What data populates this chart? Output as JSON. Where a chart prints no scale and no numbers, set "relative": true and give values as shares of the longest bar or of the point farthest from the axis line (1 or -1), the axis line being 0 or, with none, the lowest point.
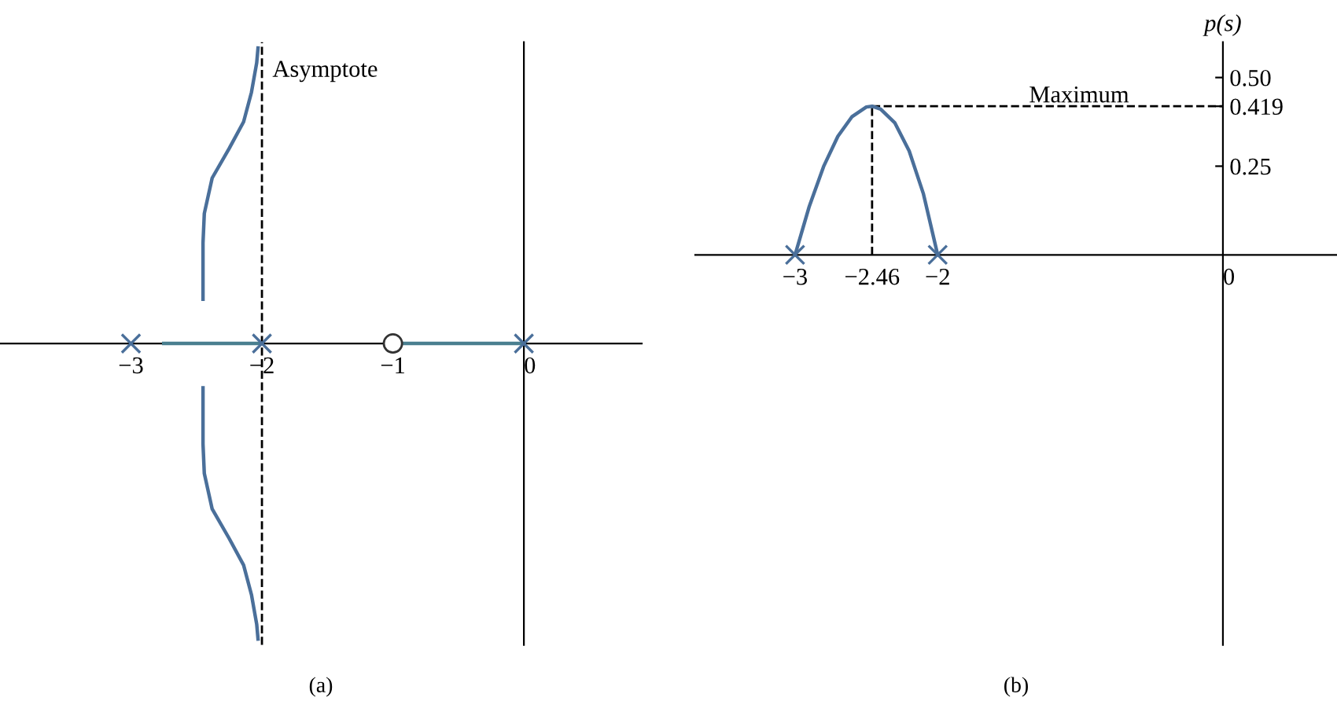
{
  "chart_data": [
    {
      "type": "line",
      "title": "(a)",
      "relative": true,
      "xlim": [
        -4,
        0.9
      ],
      "xticks": [
        {
          "value": -3,
          "label": "−3"
        },
        {
          "value": -2,
          "label": "−2"
        },
        {
          "value": -1,
          "label": "−1"
        },
        {
          "value": 0,
          "label": "0"
        }
      ],
      "tick_labels": "x",
      "series": [
        {
          "color": "#4a6f9a",
          "x": [
            -2.45,
            -2.45,
            -2.44,
            -2.38,
            -2.25,
            -2.14,
            -2.08,
            -2.04,
            -2.03
          ],
          "values": [
            0.15,
            0.34,
            0.44,
            0.56,
            0.66,
            0.75,
            0.85,
            0.95,
            1.0
          ]
        },
        {
          "color": "#4a6f9a",
          "x": [
            -2.45,
            -2.45,
            -2.44,
            -2.38,
            -2.25,
            -2.14,
            -2.08,
            -2.04,
            -2.03
          ],
          "values": [
            -0.15,
            -0.34,
            -0.44,
            -0.56,
            -0.66,
            -0.75,
            -0.85,
            -0.95,
            -1.0
          ]
        },
        {
          "color": "#4a7f8f",
          "x": [
            -2.75,
            -2
          ],
          "values": [
            0,
            0
          ]
        },
        {
          "color": "#4a7f8f",
          "x": [
            -1,
            0
          ],
          "values": [
            0,
            0
          ]
        },
        {
          "type": "scatter",
          "marker": "cross",
          "color": "#4a6f9a",
          "x": [
            -3,
            -2,
            0
          ],
          "values": [
            0,
            0,
            0
          ]
        },
        {
          "type": "scatter",
          "marker": "circle",
          "color": "#333333",
          "x": [
            -1
          ],
          "values": [
            0
          ]
        }
      ],
      "ref_lines": [
        {
          "axis": "x",
          "value": -2,
          "label": "Asymptote",
          "line_style": "dashed"
        }
      ]
    },
    {
      "type": "line",
      "title": "(b)",
      "ylabel": "p(s)",
      "xlim": [
        -3.7,
        0.8
      ],
      "ylim": [
        -1.1,
        0.6
      ],
      "xticks": [
        {
          "value": -3,
          "label": "−3"
        },
        {
          "value": -2.46,
          "label": "−2.46"
        },
        {
          "value": -2,
          "label": "−2"
        },
        {
          "value": 0,
          "label": "0"
        }
      ],
      "yticks": [
        {
          "value": 0.5,
          "label": "0.50"
        },
        {
          "value": 0.419,
          "label": "0.419"
        },
        {
          "value": 0.25,
          "label": "0.25"
        }
      ],
      "annotations": [
        "Maximum"
      ],
      "series": [
        {
          "color": "#4a6f9a",
          "x": [
            -3,
            -2.9,
            -2.8,
            -2.7,
            -2.6,
            -2.5,
            -2.46,
            -2.4,
            -2.3,
            -2.2,
            -2.1,
            -2
          ],
          "values": [
            0,
            0.137,
            0.249,
            0.334,
            0.39,
            0.417,
            0.419,
            0.411,
            0.372,
            0.293,
            0.172,
            0
          ]
        },
        {
          "type": "scatter",
          "marker": "cross",
          "color": "#4a6f9a",
          "x": [
            -3,
            -2
          ],
          "values": [
            0,
            0
          ]
        }
      ],
      "ref_lines": [
        {
          "axis": "y",
          "value": 0.419,
          "line_style": "dashed"
        },
        {
          "axis": "x",
          "value": -2.46,
          "line_style": "dashed"
        }
      ]
    }
  ]
}
